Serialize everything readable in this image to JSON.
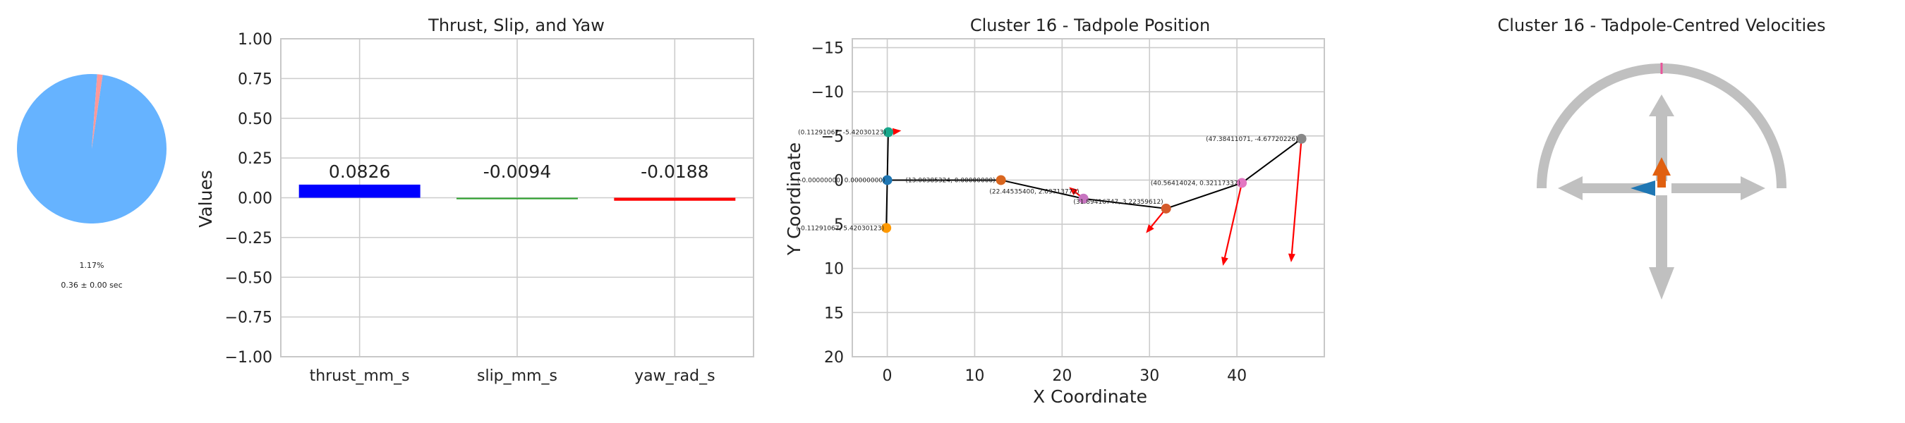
{
  "chart_data": [
    {
      "type": "pie",
      "values": [
        98.83,
        1.17
      ],
      "colors": [
        "#66b3ff",
        "#ff9999"
      ],
      "annotations": [
        "1.17%",
        "0.36 ± 0.00 sec"
      ]
    },
    {
      "type": "bar",
      "title": "Thrust, Slip, and Yaw",
      "xlabel": "",
      "ylabel": "Values",
      "categories": [
        "thrust_mm_s",
        "slip_mm_s",
        "yaw_rad_s"
      ],
      "values": [
        0.0826,
        -0.0094,
        -0.0188
      ],
      "value_labels": [
        "0.0826",
        "-0.0094",
        "-0.0188"
      ],
      "colors": [
        "#0000ff",
        "#2ca02c",
        "#ff0000"
      ],
      "ylim": [
        -1.0,
        1.0
      ],
      "yticks": [
        "−1.00",
        "−0.75",
        "−0.50",
        "−0.25",
        "0.00",
        "0.25",
        "0.50",
        "0.75",
        "1.00"
      ],
      "grid": true
    },
    {
      "type": "scatter",
      "title": "Cluster 16 - Tadpole Position",
      "xlabel": "X Coordinate",
      "ylabel": "Y Coordinate",
      "xlim": [
        -4,
        50
      ],
      "ylim": [
        20,
        -16
      ],
      "yaxis_inverted": true,
      "xticks": [
        "0",
        "10",
        "20",
        "30",
        "40"
      ],
      "yticks": [
        "−15",
        "−10",
        "−5",
        "0",
        "5",
        "10",
        "15",
        "20"
      ],
      "grid": true,
      "points": [
        {
          "x": 0.11291067,
          "y": -5.42030123,
          "label": "(0.11291067, -5.42030123)",
          "color": "#17a78b"
        },
        {
          "x": 0.0,
          "y": 0.0,
          "label": "(-0.00000000, 0.00000000)",
          "color": "#1f77b4"
        },
        {
          "x": -0.11291067,
          "y": 5.42030123,
          "label": "(-0.11291067, 5.42030123)",
          "color": "#ff9900"
        },
        {
          "x": 13.00385324,
          "y": 0.0,
          "label": "(13.00385324, 0.00000000)",
          "color": "#d9661f"
        },
        {
          "x": 22.445354,
          "y": 2.09713772,
          "label": "(22.44535400, 2.09713772)",
          "color": "#c774c0"
        },
        {
          "x": 31.89416747,
          "y": 3.22359612,
          "label": "(31.89416747, 3.22359612)",
          "color": "#d55a2b"
        },
        {
          "x": 40.56414024,
          "y": 0.32117337,
          "label": "(40.56414024, 0.32117337)",
          "color": "#e377c2"
        },
        {
          "x": 47.38411071,
          "y": -4.67720226,
          "label": "(47.38411071, -4.67720226)",
          "color": "#888888"
        }
      ],
      "path": [
        [
          0.11291067,
          -5.42030123
        ],
        [
          0.0,
          0.0
        ],
        [
          -0.11291067,
          5.42030123
        ],
        [
          0.0,
          0.0
        ],
        [
          13.00385324,
          0.0
        ],
        [
          22.445354,
          2.09713772
        ],
        [
          31.89416747,
          3.22359612
        ],
        [
          40.56414024,
          0.32117337
        ],
        [
          47.38411071,
          -4.67720226
        ]
      ],
      "arrows": [
        {
          "from": [
            0.11291067,
            -5.42030123
          ],
          "to": [
            1.6,
            -5.6
          ],
          "color": "#ff0000"
        },
        {
          "from": [
            22.445354,
            2.09713772
          ],
          "to": [
            20.8,
            0.8
          ],
          "color": "#ff0000"
        },
        {
          "from": [
            31.89416747,
            3.22359612
          ],
          "to": [
            29.6,
            6.0
          ],
          "color": "#ff0000"
        },
        {
          "from": [
            40.56414024,
            0.32117337
          ],
          "to": [
            38.4,
            9.7
          ],
          "color": "#ff0000"
        },
        {
          "from": [
            47.38411071,
            -4.67720226
          ],
          "to": [
            46.2,
            9.3
          ],
          "color": "#ff0000"
        }
      ]
    },
    {
      "type": "diagram",
      "title": "Cluster 16 - Tadpole-Centred Velocities",
      "colors": {
        "track": "#c0c0c0",
        "marker": "#e8559a",
        "thrust": "#e06010",
        "slip": "#1f77b4"
      }
    }
  ]
}
